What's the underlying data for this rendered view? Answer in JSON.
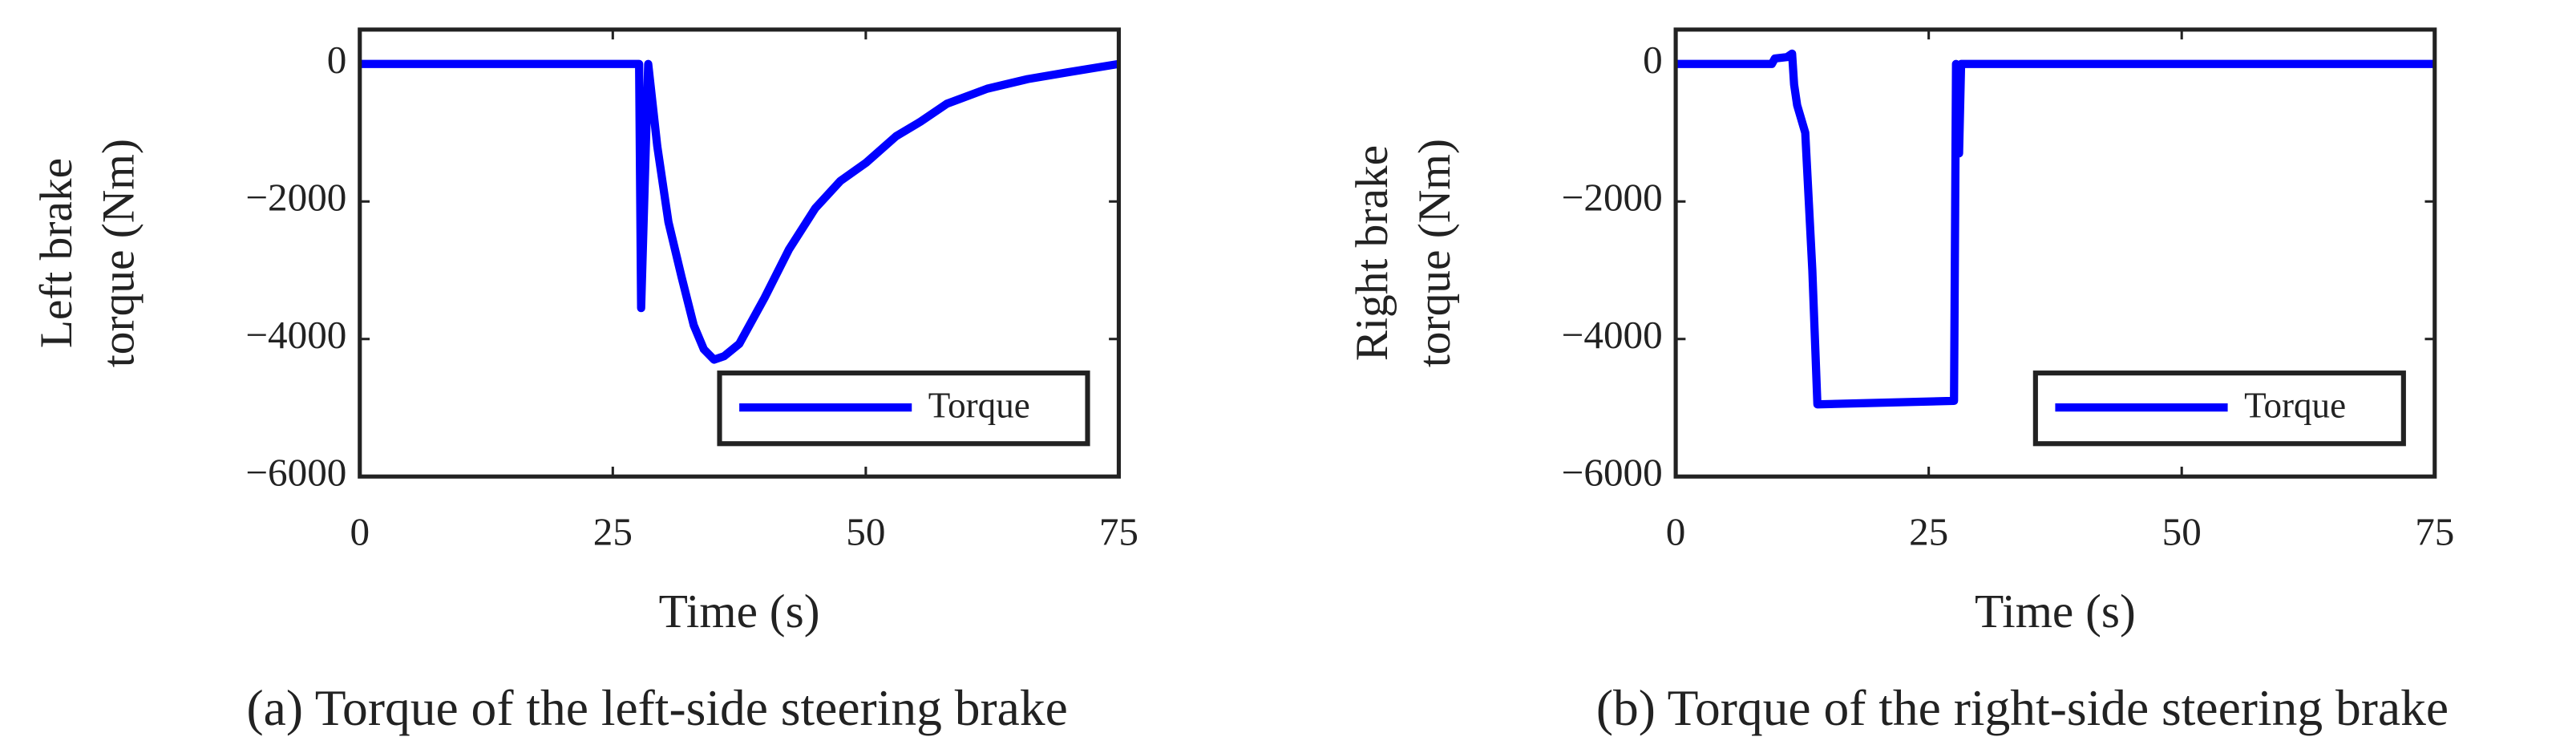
{
  "chart_data": [
    {
      "type": "line",
      "caption": "(a) Torque of the left-side steering brake",
      "ylabel": [
        "Left brake",
        "torque (Nm)"
      ],
      "xlabel": "Time (s)",
      "xlim": [
        0,
        75
      ],
      "xticks": [
        0,
        25,
        50,
        75
      ],
      "ylim": [
        -6000,
        500
      ],
      "yticks": [
        {
          "value": -6000,
          "label": "−6000"
        },
        {
          "value": -4000,
          "label": "−4000"
        },
        {
          "value": -2000,
          "label": "−2000"
        },
        0
      ],
      "legend": "lower right",
      "x": [
        0,
        27.6,
        27.8,
        28.5,
        29.4,
        30.5,
        31.8,
        33,
        34,
        35,
        36,
        37.5,
        40,
        42.4,
        45,
        47.5,
        50,
        53,
        55.4,
        58,
        62,
        66,
        70,
        75
      ],
      "series": [
        {
          "name": "Torque",
          "color": "#0000ff",
          "values": [
            0,
            0,
            -3550,
            0,
            -1200,
            -2300,
            -3100,
            -3800,
            -4150,
            -4300,
            -4250,
            -4070,
            -3400,
            -2700,
            -2100,
            -1700,
            -1440,
            -1050,
            -840,
            -580,
            -360,
            -220,
            -120,
            0
          ]
        }
      ]
    },
    {
      "type": "line",
      "caption": "(b) Torque of the right-side steering brake",
      "ylabel": [
        "Right brake",
        "torque (Nm)"
      ],
      "xlabel": "Time (s)",
      "xlim": [
        0,
        75
      ],
      "xticks": [
        0,
        25,
        50,
        75
      ],
      "ylim": [
        -6000,
        500
      ],
      "yticks": [
        {
          "value": -6000,
          "label": "−6000"
        },
        {
          "value": -4000,
          "label": "−4000"
        },
        {
          "value": -2000,
          "label": "−2000"
        },
        0
      ],
      "legend": "lower right",
      "x": [
        0,
        9.5,
        9.8,
        11,
        11.5,
        11.7,
        12,
        12.8,
        13.5,
        14,
        27.5,
        27.7,
        28,
        28.2,
        75
      ],
      "series": [
        {
          "name": "Torque",
          "color": "#0000ff",
          "values": [
            0,
            0,
            80,
            100,
            150,
            -300,
            -600,
            -1000,
            -3000,
            -4950,
            -4900,
            0,
            -1300,
            0,
            0
          ]
        }
      ]
    }
  ]
}
